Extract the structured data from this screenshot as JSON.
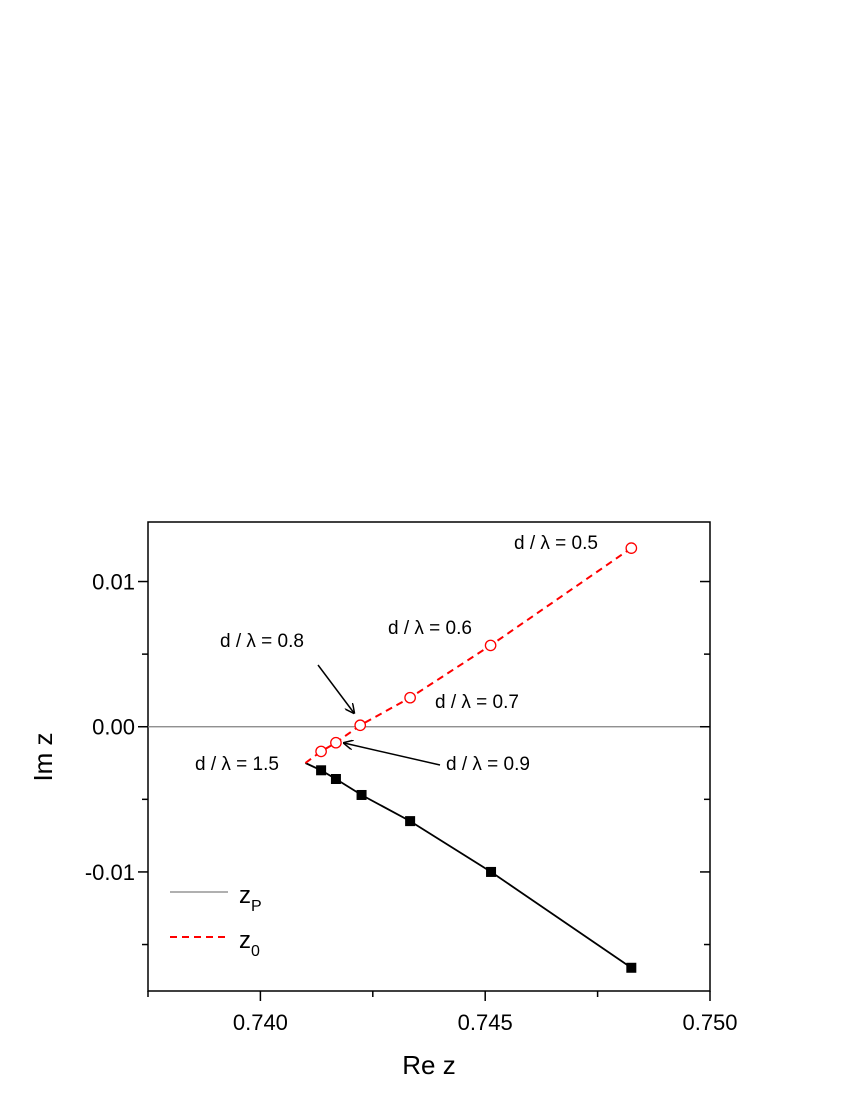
{
  "chart_data": {
    "type": "scatter",
    "xlabel": "Re z",
    "ylabel": "Im z",
    "xlim": [
      0.7375,
      0.75
    ],
    "ylim": [
      -0.0182,
      0.0141
    ],
    "xticks": [
      0.74,
      0.745,
      0.75
    ],
    "xtick_labels": [
      "0.740",
      "0.745",
      "0.750"
    ],
    "yticks": [
      0.01,
      0.0,
      -0.01
    ],
    "ytick_labels": [
      "0.01",
      "0.00",
      "-0.01"
    ],
    "grid": false,
    "legend_position": "bottom-left",
    "reference_line": {
      "y": 0,
      "color": "#808080"
    },
    "series": [
      {
        "name": "z_P",
        "legend_main": "z",
        "legend_sub": "P",
        "color": "#000000",
        "line_style": "solid",
        "marker": "filled-square",
        "x": [
          0.741,
          0.74135,
          0.74168,
          0.74225,
          0.74333,
          0.74513,
          0.74825
        ],
        "y": [
          -0.0025,
          -0.003,
          -0.0036,
          -0.0047,
          -0.0065,
          -0.01,
          -0.0166
        ],
        "marker_x": [
          0.74135,
          0.74168,
          0.74225,
          0.74333,
          0.74513,
          0.74825
        ],
        "marker_y": [
          -0.003,
          -0.0036,
          -0.0047,
          -0.0065,
          -0.01,
          -0.0166
        ]
      },
      {
        "name": "z_0",
        "legend_main": "z",
        "legend_sub": "0",
        "color": "#ff0000",
        "line_style": "dashed",
        "marker": "open-circle",
        "x": [
          0.741,
          0.74135,
          0.74168,
          0.74222,
          0.74333,
          0.74512,
          0.74825
        ],
        "y": [
          -0.0025,
          -0.0017,
          -0.0011,
          0.0001,
          0.002,
          0.0056,
          0.0123
        ],
        "marker_x": [
          0.74135,
          0.74168,
          0.74222,
          0.74333,
          0.74512,
          0.74825
        ],
        "marker_y": [
          -0.0017,
          -0.0011,
          0.0001,
          0.002,
          0.0056,
          0.0123
        ]
      }
    ],
    "annotations": [
      {
        "text": "d / λ = 0.5"
      },
      {
        "text": "d / λ = 0.6"
      },
      {
        "text": "d / λ = 0.7"
      },
      {
        "text": "d / λ = 0.8",
        "arrow_to": [
          0.74222,
          0.0001
        ]
      },
      {
        "text": "d / λ = 0.9",
        "arrow_to": [
          0.74168,
          -0.0011
        ]
      },
      {
        "text": "d / λ = 1.5"
      }
    ]
  }
}
